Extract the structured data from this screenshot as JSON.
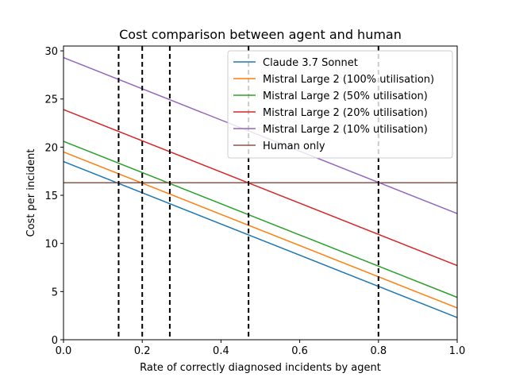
{
  "chart_data": {
    "type": "line",
    "title": "Cost comparison between agent and human",
    "xlabel": "Rate of correctly diagnosed incidents by agent",
    "ylabel": "Cost per incident",
    "xlim": [
      0.0,
      1.0
    ],
    "ylim": [
      0,
      30.5
    ],
    "xticks": [
      "0.0",
      "0.2",
      "0.4",
      "0.6",
      "0.8",
      "1.0"
    ],
    "xtick_values": [
      0.0,
      0.2,
      0.4,
      0.6,
      0.8,
      1.0
    ],
    "yticks": [
      "0",
      "5",
      "10",
      "15",
      "20",
      "25",
      "30"
    ],
    "ytick_values": [
      0,
      5,
      10,
      15,
      20,
      25,
      30
    ],
    "grid": false,
    "legend_position": "top-right",
    "series": [
      {
        "name": "Claude 3.7 Sonnet",
        "color": "#1f77b4",
        "x": [
          0.0,
          1.0
        ],
        "y": [
          18.5,
          2.3
        ]
      },
      {
        "name": "Mistral Large 2 (100% utilisation)",
        "color": "#ff7f0e",
        "x": [
          0.0,
          1.0
        ],
        "y": [
          19.5,
          3.3
        ]
      },
      {
        "name": "Mistral Large 2 (50% utilisation)",
        "color": "#2ca02c",
        "x": [
          0.0,
          1.0
        ],
        "y": [
          20.6,
          4.4
        ]
      },
      {
        "name": "Mistral Large 2 (20% utilisation)",
        "color": "#d62728",
        "x": [
          0.0,
          1.0
        ],
        "y": [
          23.9,
          7.7
        ]
      },
      {
        "name": "Mistral Large 2 (10% utilisation)",
        "color": "#9467bd",
        "x": [
          0.0,
          1.0
        ],
        "y": [
          29.3,
          13.1
        ]
      },
      {
        "name": "Human only",
        "color": "#8c564b",
        "x": [
          0.0,
          1.0
        ],
        "y": [
          16.3,
          16.3
        ]
      }
    ],
    "vlines": [
      0.14,
      0.2,
      0.27,
      0.47,
      0.8
    ]
  }
}
